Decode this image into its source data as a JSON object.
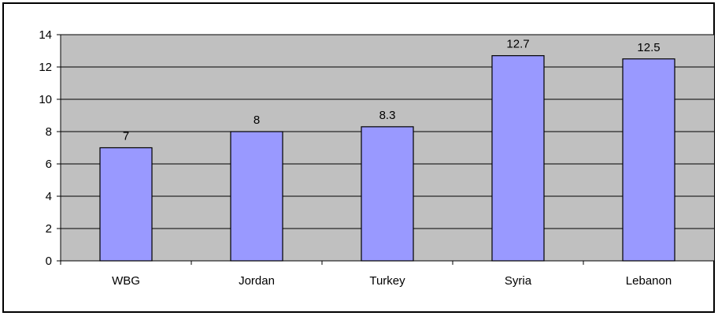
{
  "chart_data": {
    "type": "bar",
    "categories": [
      "WBG",
      "Jordan",
      "Turkey",
      "Syria",
      "Lebanon"
    ],
    "values": [
      7,
      8,
      8.3,
      12.7,
      12.5
    ],
    "data_labels": [
      "7",
      "8",
      "8.3",
      "12.7",
      "12.5"
    ],
    "y_ticks": [
      "0",
      "2",
      "4",
      "6",
      "8",
      "10",
      "12",
      "14"
    ],
    "ylim": [
      0,
      14
    ],
    "title": "",
    "xlabel": "",
    "ylabel": "",
    "grid": true,
    "legend": "none",
    "colors": {
      "bar_fill": "#9999ff",
      "bar_stroke": "#000000",
      "plot_background": "#c0c0c0",
      "gridline": "#000000"
    }
  }
}
